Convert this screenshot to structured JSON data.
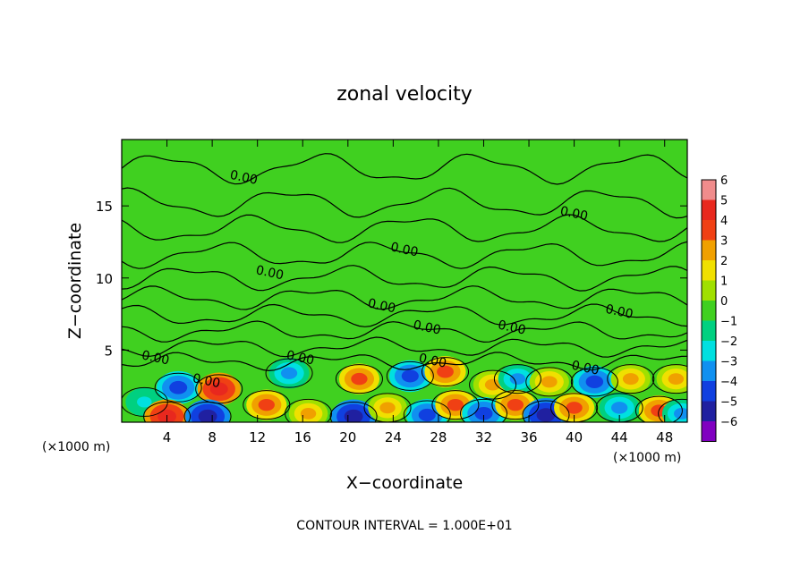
{
  "chart_data": {
    "type": "heatmap",
    "title": "zonal velocity",
    "xlabel": "X−coordinate",
    "ylabel": "Z−coordinate",
    "x_unit_left": "(×1000 m)",
    "x_unit_right": "(×1000 m)",
    "footer": "CONTOUR INTERVAL = 1.000E+01",
    "xlim": [
      0,
      50
    ],
    "ylim": [
      0,
      19.6
    ],
    "x_ticks": [
      4,
      8,
      12,
      16,
      20,
      24,
      28,
      32,
      36,
      40,
      44,
      48
    ],
    "x_tick_labels": [
      "4",
      "8",
      "12",
      "16",
      "20",
      "24",
      "28",
      "32",
      "36",
      "40",
      "44",
      "48"
    ],
    "y_ticks": [
      5,
      10,
      15
    ],
    "y_tick_labels": [
      "5",
      "10",
      "15"
    ],
    "colorbar": {
      "levels": [
        6,
        5,
        4,
        3,
        2,
        1,
        0,
        -1,
        -2,
        -3,
        -4,
        -5,
        -6
      ],
      "labels": [
        "6",
        "5",
        "4",
        "3",
        "2",
        "1",
        "0",
        "−1",
        "−2",
        "−3",
        "−4",
        "−5",
        "−6"
      ],
      "colors": [
        "#f08c8c",
        "#e8281e",
        "#f04014",
        "#f0a000",
        "#f0e000",
        "#a0e000",
        "#40d020",
        "#00d080",
        "#00e0e0",
        "#1090f0",
        "#1040e0",
        "#2020a0",
        "#8000c0"
      ]
    },
    "contour_label": "0.00",
    "contour_labels": [
      {
        "x": 10.8,
        "z": 17.0
      },
      {
        "x": 40.0,
        "z": 14.5
      },
      {
        "x": 25.0,
        "z": 12.0
      },
      {
        "x": 13.1,
        "z": 10.4
      },
      {
        "x": 23.0,
        "z": 8.1
      },
      {
        "x": 44.0,
        "z": 7.7
      },
      {
        "x": 27.0,
        "z": 6.6
      },
      {
        "x": 34.5,
        "z": 6.6
      },
      {
        "x": 3.0,
        "z": 4.5
      },
      {
        "x": 15.8,
        "z": 4.5
      },
      {
        "x": 27.5,
        "z": 4.3
      },
      {
        "x": 41.0,
        "z": 3.8
      },
      {
        "x": 7.5,
        "z": 2.9
      }
    ],
    "anomalies": [
      {
        "x": 5.0,
        "z": 2.4,
        "v": -4.5
      },
      {
        "x": 8.6,
        "z": 2.3,
        "v": 4.5
      },
      {
        "x": 14.8,
        "z": 3.4,
        "v": -3.5
      },
      {
        "x": 21.0,
        "z": 3.0,
        "v": 3.5
      },
      {
        "x": 25.5,
        "z": 3.2,
        "v": -4.0
      },
      {
        "x": 28.6,
        "z": 3.5,
        "v": 3.8
      },
      {
        "x": 32.8,
        "z": 2.6,
        "v": 3.0
      },
      {
        "x": 35.0,
        "z": 3.0,
        "v": -3.0
      },
      {
        "x": 37.8,
        "z": 2.8,
        "v": 3.2
      },
      {
        "x": 41.8,
        "z": 2.8,
        "v": -4.2
      },
      {
        "x": 45.0,
        "z": 3.0,
        "v": 3.2
      },
      {
        "x": 49.0,
        "z": 3.0,
        "v": 3.0
      },
      {
        "x": 2.0,
        "z": 1.4,
        "v": -2.5
      },
      {
        "x": 4.0,
        "z": 0.4,
        "v": 5.0
      },
      {
        "x": 7.6,
        "z": 0.4,
        "v": -5.0
      },
      {
        "x": 12.8,
        "z": 1.2,
        "v": 3.5
      },
      {
        "x": 16.5,
        "z": 0.6,
        "v": 3.0
      },
      {
        "x": 20.5,
        "z": 0.4,
        "v": -5.0
      },
      {
        "x": 23.5,
        "z": 1.0,
        "v": 3.0
      },
      {
        "x": 27.0,
        "z": 0.5,
        "v": -4.0
      },
      {
        "x": 29.5,
        "z": 1.2,
        "v": 3.5
      },
      {
        "x": 32.0,
        "z": 0.6,
        "v": -4.5
      },
      {
        "x": 34.8,
        "z": 1.2,
        "v": 3.5
      },
      {
        "x": 37.5,
        "z": 0.5,
        "v": -5.0
      },
      {
        "x": 40.0,
        "z": 1.0,
        "v": 3.5
      },
      {
        "x": 44.0,
        "z": 1.0,
        "v": -3.5
      },
      {
        "x": 47.5,
        "z": 0.8,
        "v": 3.5
      },
      {
        "x": 49.5,
        "z": 0.6,
        "v": -3.0
      }
    ]
  }
}
